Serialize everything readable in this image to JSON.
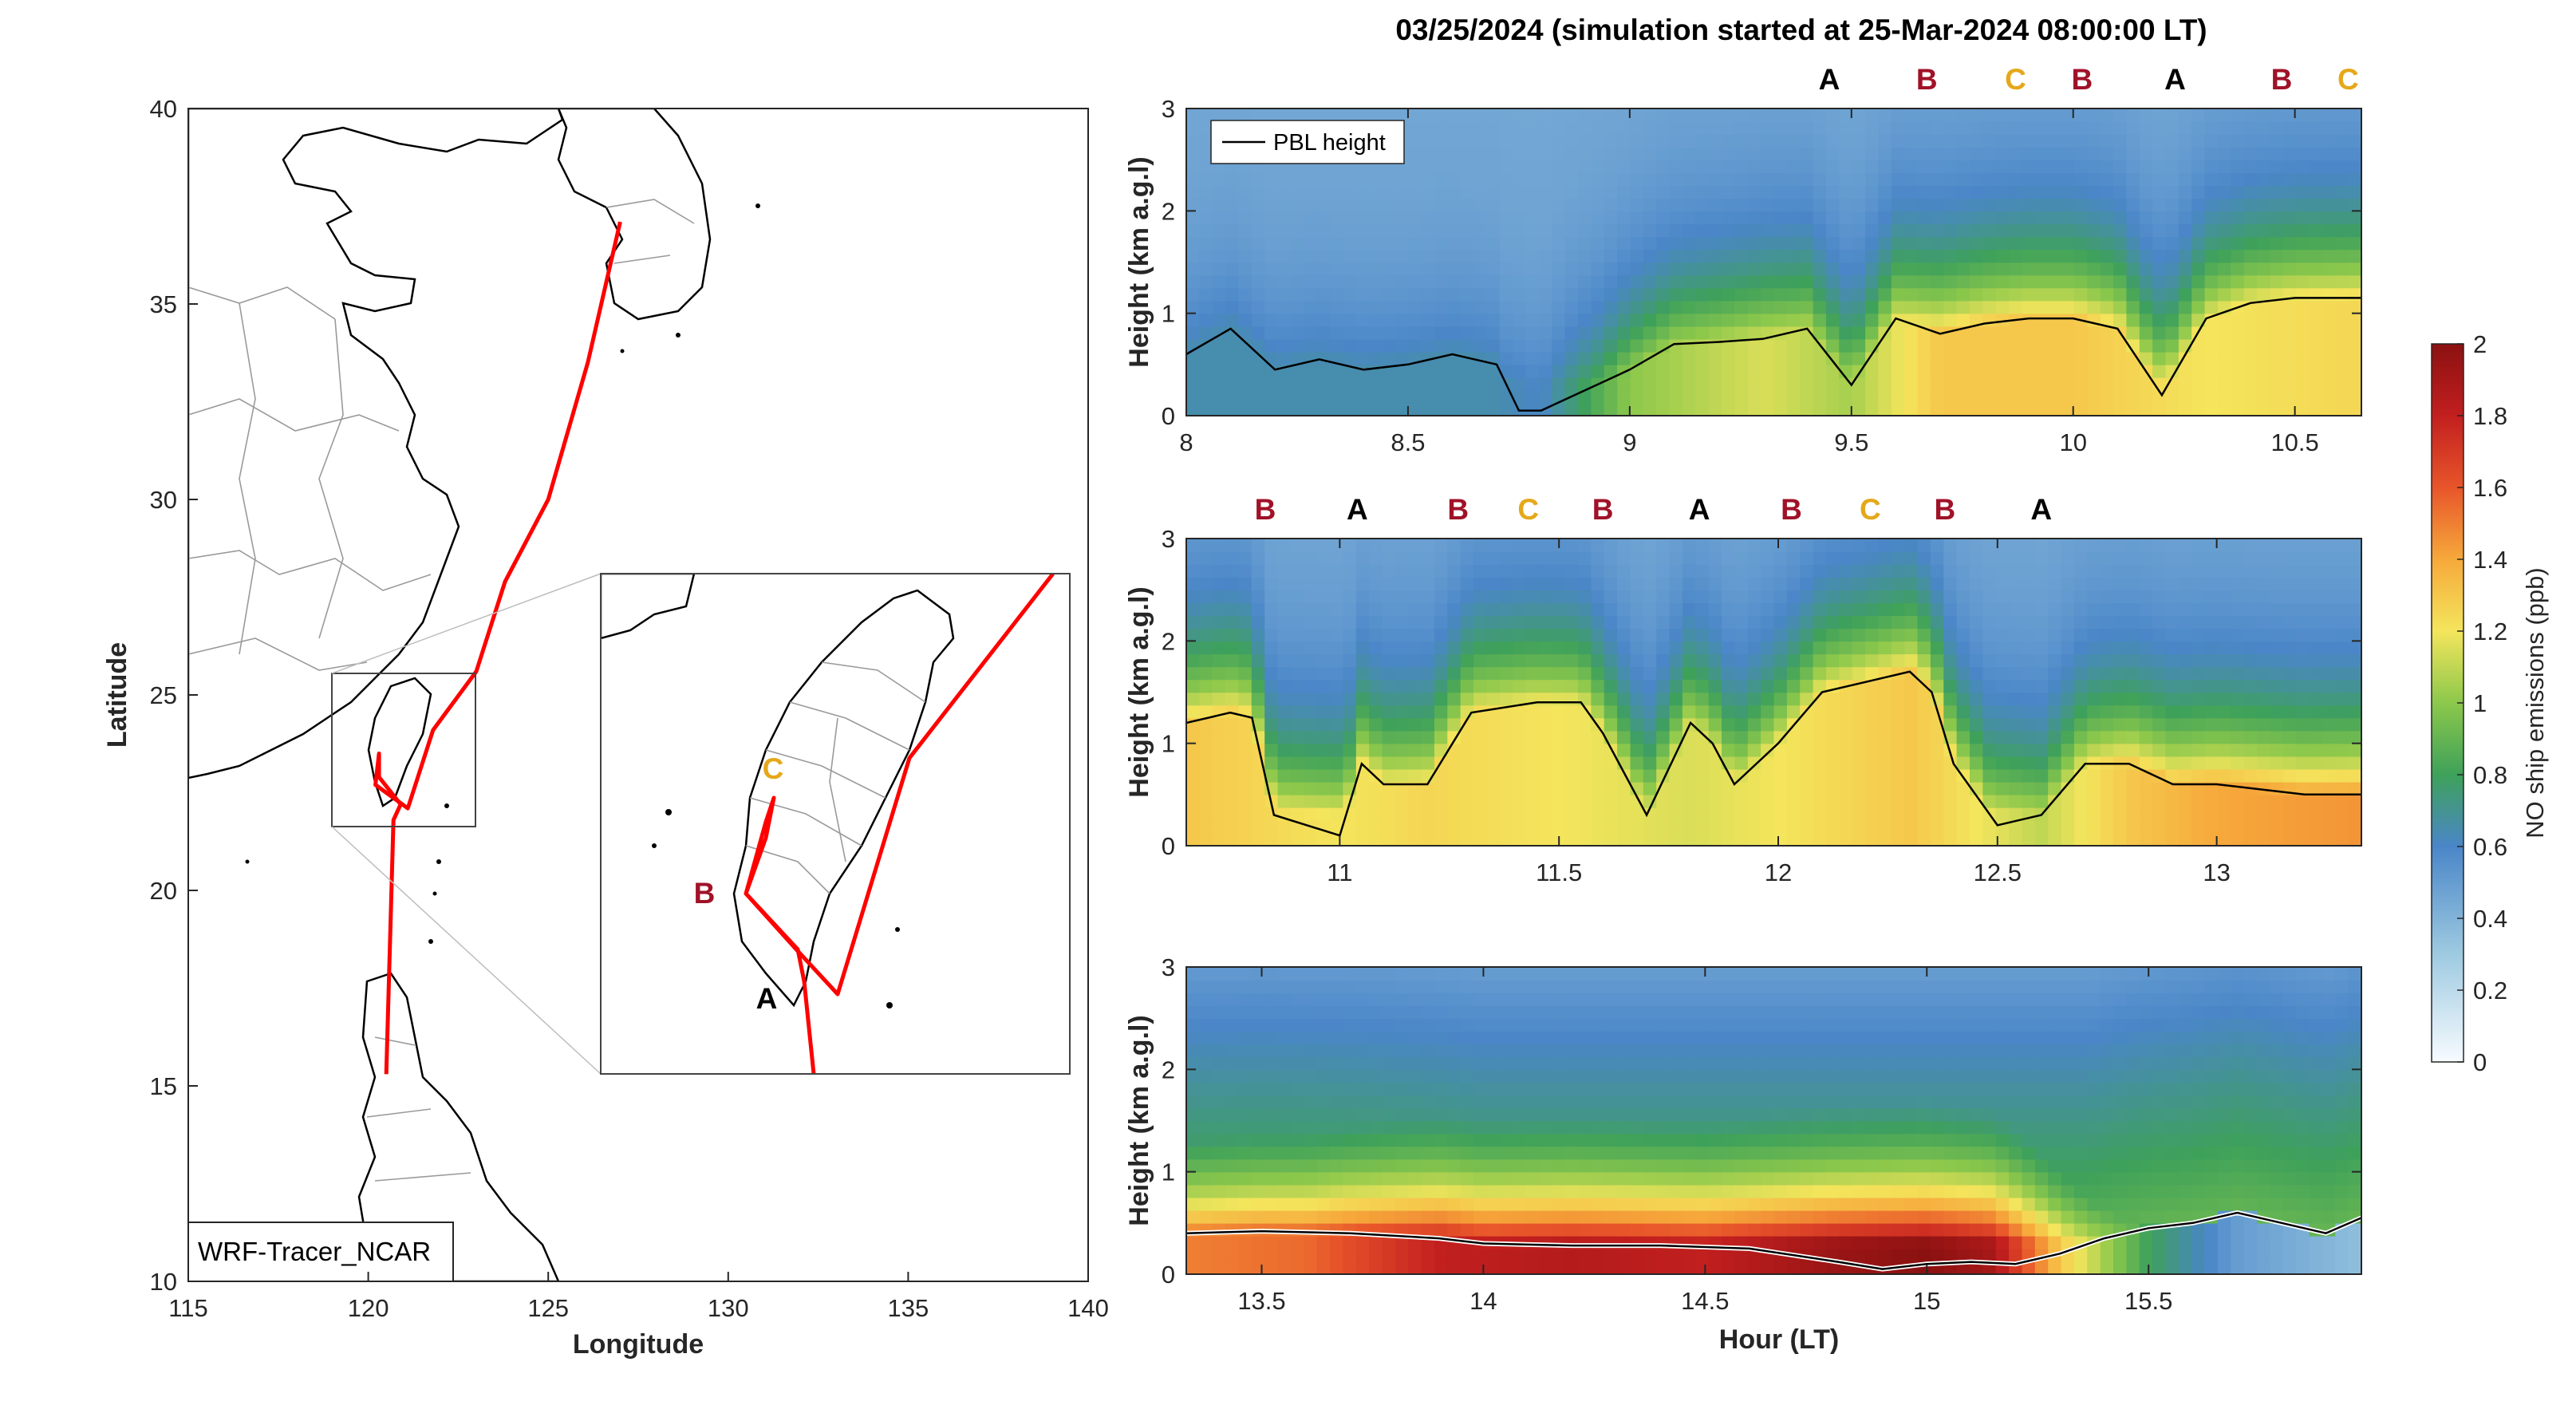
{
  "figure": {
    "title": "03/25/2024 (simulation started at 25-Mar-2024 08:00:00 LT)"
  },
  "map": {
    "xlabel": "Longitude",
    "ylabel": "Latitude",
    "xticks": [
      "115",
      "120",
      "125",
      "130",
      "135",
      "140"
    ],
    "yticks": [
      "10",
      "15",
      "20",
      "25",
      "30",
      "35",
      "40"
    ],
    "xlim": [
      115,
      140
    ],
    "ylim": [
      10,
      40
    ],
    "model_label": "WRF-Tracer_NCAR",
    "track_color": "#ff0000",
    "track_lonlat": [
      [
        127.0,
        37.1
      ],
      [
        126.1,
        33.5
      ],
      [
        125.0,
        30.0
      ],
      [
        123.8,
        27.9
      ],
      [
        123.0,
        25.6
      ],
      [
        121.8,
        24.1
      ],
      [
        121.1,
        22.1
      ],
      [
        120.2,
        22.7
      ],
      [
        120.3,
        23.5
      ],
      [
        120.3,
        22.9
      ],
      [
        120.9,
        22.2
      ],
      [
        120.7,
        21.8
      ],
      [
        120.5,
        15.3
      ]
    ],
    "inset_labels": {
      "C": "C",
      "B": "B",
      "A": "A"
    }
  },
  "colors": {
    "A": "#000000",
    "B": "#a01228",
    "C": "#e5a81b",
    "pbl_line": "#000000"
  },
  "colorbar": {
    "label": "NO ship emissions (ppb)",
    "ticks": [
      "0",
      "0.2",
      "0.4",
      "0.6",
      "0.8",
      "1",
      "1.2",
      "1.4",
      "1.6",
      "1.8",
      "2"
    ],
    "range": [
      0,
      2
    ]
  },
  "chart_data": [
    {
      "type": "heatmap",
      "title": "03/25/2024 (simulation started at 25-Mar-2024 08:00:00 LT)",
      "ylabel": "Height (km a.g.l)",
      "xlim": [
        8.0,
        10.65
      ],
      "ylim": [
        0,
        3
      ],
      "xticks": [
        "8",
        "8.5",
        "9",
        "9.5",
        "10",
        "10.5"
      ],
      "yticks": [
        "0",
        "1",
        "2",
        "3"
      ],
      "legend": {
        "label": "PBL height",
        "placement": "top-left"
      },
      "markers": [
        {
          "x": 9.45,
          "label": "A"
        },
        {
          "x": 9.67,
          "label": "B"
        },
        {
          "x": 9.87,
          "label": "C"
        },
        {
          "x": 10.02,
          "label": "B"
        },
        {
          "x": 10.23,
          "label": "A"
        },
        {
          "x": 10.47,
          "label": "B"
        },
        {
          "x": 10.62,
          "label": "C"
        }
      ],
      "pbl_height": {
        "x": [
          8.0,
          8.1,
          8.2,
          8.3,
          8.4,
          8.5,
          8.6,
          8.7,
          8.75,
          8.8,
          9.0,
          9.1,
          9.2,
          9.3,
          9.4,
          9.5,
          9.6,
          9.7,
          9.8,
          9.9,
          10.0,
          10.1,
          10.2,
          10.3,
          10.4,
          10.5,
          10.6,
          10.65
        ],
        "y": [
          0.6,
          0.85,
          0.45,
          0.55,
          0.45,
          0.5,
          0.6,
          0.5,
          0.05,
          0.05,
          0.45,
          0.7,
          0.72,
          0.75,
          0.85,
          0.3,
          0.95,
          0.8,
          0.9,
          0.95,
          0.95,
          0.85,
          0.2,
          0.95,
          1.1,
          1.15,
          1.15,
          1.15
        ]
      },
      "field_profile": {
        "x": [
          8.0,
          8.7,
          8.8,
          9.0,
          9.3,
          9.5,
          9.7,
          10.0,
          10.3,
          10.65
        ],
        "surface_ppb": [
          0.65,
          0.65,
          0.6,
          1.0,
          1.15,
          1.05,
          1.3,
          1.3,
          1.2,
          1.25
        ]
      }
    },
    {
      "type": "heatmap",
      "ylabel": "Height (km a.g.l)",
      "xlim": [
        10.65,
        13.33
      ],
      "ylim": [
        0,
        3
      ],
      "xticks": [
        "11",
        "11.5",
        "12",
        "12.5",
        "13"
      ],
      "yticks": [
        "0",
        "1",
        "2",
        "3"
      ],
      "markers": [
        {
          "x": 10.83,
          "label": "B"
        },
        {
          "x": 11.04,
          "label": "A"
        },
        {
          "x": 11.27,
          "label": "B"
        },
        {
          "x": 11.43,
          "label": "C"
        },
        {
          "x": 11.6,
          "label": "B"
        },
        {
          "x": 11.82,
          "label": "A"
        },
        {
          "x": 12.03,
          "label": "B"
        },
        {
          "x": 12.21,
          "label": "C"
        },
        {
          "x": 12.38,
          "label": "B"
        },
        {
          "x": 12.6,
          "label": "A"
        }
      ],
      "pbl_height": {
        "x": [
          10.65,
          10.75,
          10.8,
          10.85,
          11.0,
          11.05,
          11.1,
          11.2,
          11.3,
          11.45,
          11.55,
          11.6,
          11.7,
          11.8,
          11.85,
          11.9,
          12.0,
          12.1,
          12.2,
          12.3,
          12.35,
          12.4,
          12.5,
          12.6,
          12.7,
          12.8,
          12.9,
          13.0,
          13.1,
          13.2,
          13.33
        ],
        "y": [
          1.2,
          1.3,
          1.25,
          0.3,
          0.1,
          0.8,
          0.6,
          0.6,
          1.3,
          1.4,
          1.4,
          1.1,
          0.3,
          1.2,
          1.0,
          0.6,
          1.0,
          1.5,
          1.6,
          1.7,
          1.5,
          0.8,
          0.2,
          0.3,
          0.8,
          0.8,
          0.6,
          0.6,
          0.55,
          0.5,
          0.5
        ]
      },
      "field_profile": {
        "x": [
          10.65,
          11.0,
          11.2,
          11.5,
          11.8,
          12.0,
          12.3,
          12.6,
          12.8,
          13.0,
          13.33
        ],
        "surface_ppb": [
          1.3,
          1.2,
          1.25,
          1.2,
          1.15,
          1.2,
          1.3,
          1.1,
          1.3,
          1.4,
          1.45
        ]
      }
    },
    {
      "type": "heatmap",
      "xlabel": "Hour (LT)",
      "ylabel": "Height (km a.g.l)",
      "xlim": [
        13.33,
        15.98
      ],
      "ylim": [
        0,
        3
      ],
      "xticks": [
        "13.5",
        "14",
        "14.5",
        "15",
        "15.5"
      ],
      "yticks": [
        "0",
        "1",
        "2",
        "3"
      ],
      "pbl_height": {
        "x": [
          13.33,
          13.5,
          13.7,
          13.9,
          14.0,
          14.2,
          14.4,
          14.6,
          14.8,
          14.9,
          15.0,
          15.1,
          15.2,
          15.3,
          15.4,
          15.5,
          15.6,
          15.7,
          15.8,
          15.9,
          15.98
        ],
        "y": [
          0.4,
          0.42,
          0.4,
          0.35,
          0.3,
          0.28,
          0.28,
          0.25,
          0.12,
          0.05,
          0.1,
          0.12,
          0.1,
          0.2,
          0.35,
          0.45,
          0.5,
          0.6,
          0.5,
          0.4,
          0.55
        ]
      },
      "field_profile": {
        "x": [
          13.33,
          13.6,
          13.9,
          14.2,
          14.5,
          14.8,
          15.0,
          15.15,
          15.3,
          15.5,
          15.7,
          15.98
        ],
        "surface_ppb": [
          1.5,
          1.55,
          1.8,
          1.85,
          1.8,
          1.95,
          2.0,
          1.9,
          1.3,
          0.8,
          0.5,
          0.35
        ]
      }
    }
  ]
}
